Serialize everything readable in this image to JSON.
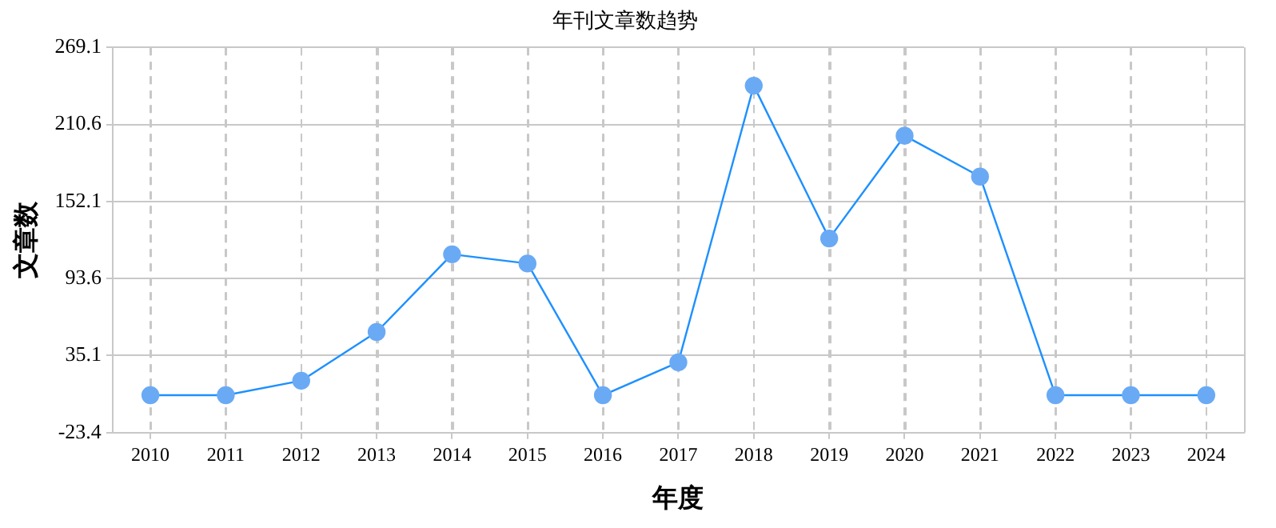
{
  "chart_data": {
    "type": "line",
    "title": "年刊文章数趋势",
    "xlabel": "年度",
    "ylabel": "文章数",
    "categories": [
      "2010",
      "2011",
      "2012",
      "2013",
      "2014",
      "2015",
      "2016",
      "2017",
      "2018",
      "2019",
      "2020",
      "2021",
      "2022",
      "2023",
      "2024"
    ],
    "series": [
      {
        "color": "#1e90ff",
        "values": [
          5,
          5,
          16,
          53,
          112,
          105,
          5,
          30,
          240,
          124,
          202,
          171,
          5,
          5,
          5
        ]
      }
    ],
    "ylim": [
      -23.4,
      269.1
    ],
    "yticks": [
      -23.4,
      35.1,
      93.6,
      152.1,
      210.6,
      269.1
    ],
    "grid": true,
    "legend": false,
    "marker": "circle",
    "line_style": "solid"
  }
}
